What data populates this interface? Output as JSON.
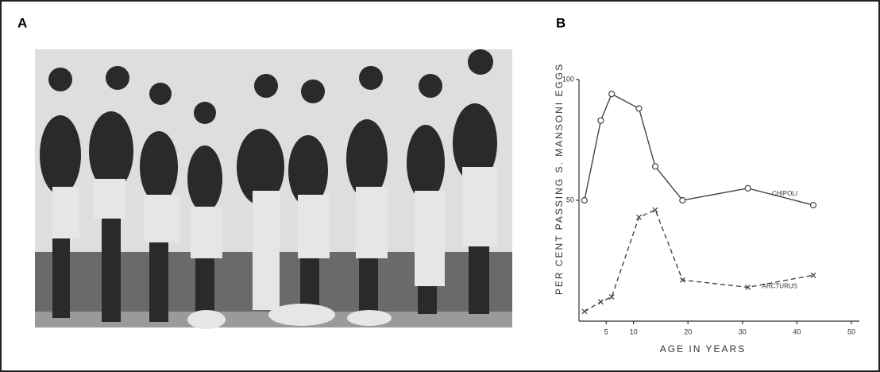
{
  "panel_labels": [
    "A",
    "B"
  ],
  "chart_data": {
    "type": "line",
    "x_label": "AGE IN YEARS",
    "y_label": "PER CENT PASSING S. MANSONI EGGS",
    "x": [
      1,
      4,
      6,
      11,
      14,
      19,
      31,
      43
    ],
    "series": [
      {
        "name": "CHIPOLI",
        "color": "#444444",
        "style": "solid",
        "marker": "circle",
        "values": [
          50,
          83,
          94,
          88,
          64,
          50,
          55,
          48
        ]
      },
      {
        "name": "ARCTURUS",
        "color": "#444444",
        "style": "dashed",
        "marker": "x",
        "values": [
          4,
          8,
          10,
          43,
          46,
          17,
          14,
          19
        ]
      }
    ],
    "xlim": [
      0,
      50
    ],
    "xticks": [
      5,
      10,
      20,
      30,
      40,
      50
    ],
    "ylim": [
      0,
      100
    ],
    "yticks": [
      50,
      100
    ]
  }
}
